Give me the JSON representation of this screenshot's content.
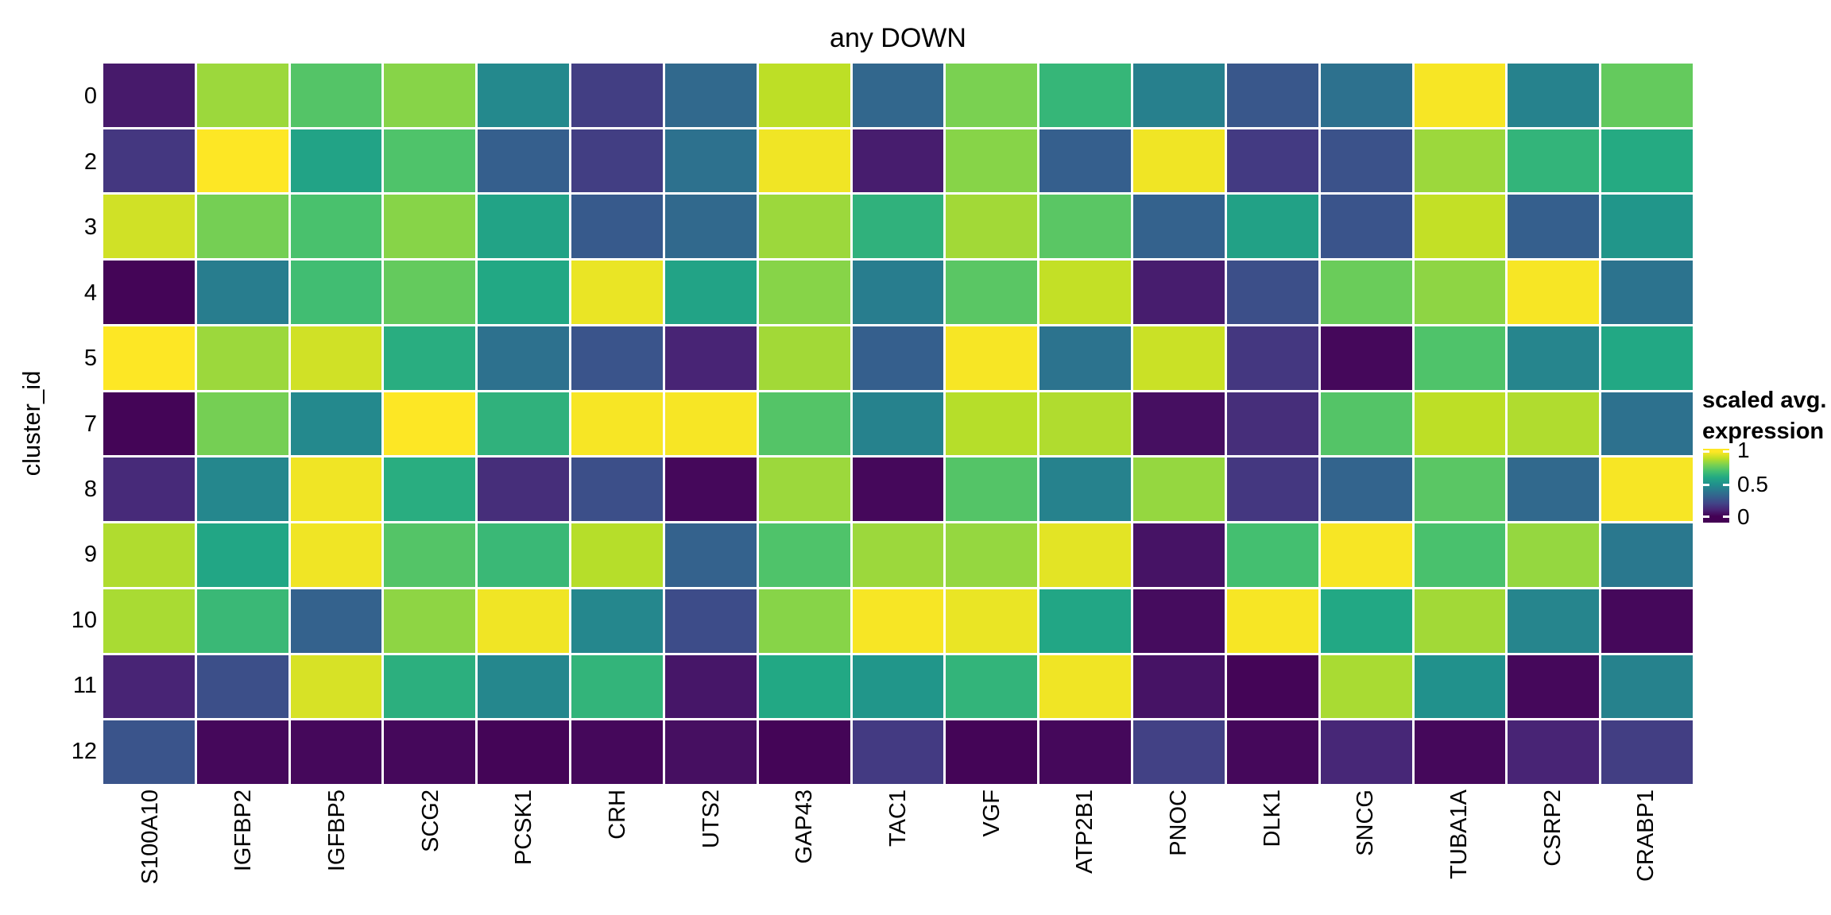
{
  "title": "any DOWN",
  "y_axis_label": "cluster_id",
  "legend": {
    "title_line1": "scaled avg.",
    "title_line2": "expression",
    "ticks": [
      "1",
      "0.5",
      "0"
    ]
  },
  "chart_data": {
    "type": "heatmap",
    "title": "any DOWN",
    "ylabel": "cluster_id",
    "xlabel": "",
    "legend_title": "scaled avg. expression",
    "legend_tick_labels": [
      "1",
      "0.5",
      "0"
    ],
    "value_range": [
      0,
      1
    ],
    "grid": "white-gaps",
    "legend_position": "right",
    "x_tick_label_rotation_deg": -90,
    "colormap": "viridis",
    "colormap_stops": [
      "#440154",
      "#482475",
      "#414487",
      "#355f8d",
      "#2a788e",
      "#21918c",
      "#22a884",
      "#44bf70",
      "#7ad151",
      "#bddf26",
      "#fde725"
    ],
    "columns": [
      "S100A10",
      "IGFBP2",
      "IGFBP5",
      "SCG2",
      "PCSK1",
      "CRH",
      "UTS2",
      "GAP43",
      "TAC1",
      "VGF",
      "ATP2B1",
      "PNOC",
      "DLK1",
      "SNCG",
      "TUBA1A",
      "CSRP2",
      "CRABP1"
    ],
    "rows": [
      "0",
      "2",
      "3",
      "4",
      "5",
      "7",
      "8",
      "9",
      "10",
      "11",
      "12"
    ],
    "values": [
      [
        0.07,
        0.85,
        0.73,
        0.82,
        0.47,
        0.18,
        0.34,
        0.9,
        0.33,
        0.8,
        0.66,
        0.43,
        0.27,
        0.37,
        0.99,
        0.44,
        0.76
      ],
      [
        0.16,
        1.0,
        0.58,
        0.72,
        0.3,
        0.18,
        0.37,
        0.98,
        0.08,
        0.82,
        0.3,
        0.98,
        0.17,
        0.25,
        0.85,
        0.65,
        0.61
      ],
      [
        0.93,
        0.79,
        0.71,
        0.82,
        0.58,
        0.28,
        0.34,
        0.85,
        0.64,
        0.86,
        0.74,
        0.31,
        0.57,
        0.26,
        0.91,
        0.3,
        0.52
      ],
      [
        0.01,
        0.42,
        0.69,
        0.76,
        0.6,
        0.97,
        0.58,
        0.82,
        0.42,
        0.74,
        0.91,
        0.08,
        0.24,
        0.77,
        0.83,
        0.99,
        0.38
      ],
      [
        1.0,
        0.85,
        0.93,
        0.62,
        0.37,
        0.26,
        0.1,
        0.86,
        0.3,
        0.99,
        0.38,
        0.92,
        0.16,
        0.02,
        0.72,
        0.45,
        0.6
      ],
      [
        0.01,
        0.79,
        0.47,
        1.0,
        0.64,
        0.99,
        0.99,
        0.73,
        0.44,
        0.89,
        0.88,
        0.04,
        0.13,
        0.73,
        0.9,
        0.88,
        0.37
      ],
      [
        0.12,
        0.46,
        0.98,
        0.62,
        0.13,
        0.24,
        0.02,
        0.85,
        0.02,
        0.73,
        0.44,
        0.84,
        0.16,
        0.32,
        0.74,
        0.34,
        0.99
      ],
      [
        0.88,
        0.59,
        0.98,
        0.73,
        0.67,
        0.89,
        0.31,
        0.72,
        0.85,
        0.84,
        0.96,
        0.05,
        0.7,
        0.99,
        0.71,
        0.84,
        0.4
      ],
      [
        0.87,
        0.67,
        0.31,
        0.83,
        0.98,
        0.46,
        0.23,
        0.82,
        0.99,
        0.97,
        0.59,
        0.03,
        0.99,
        0.6,
        0.86,
        0.45,
        0.02
      ],
      [
        0.1,
        0.24,
        0.94,
        0.63,
        0.46,
        0.65,
        0.06,
        0.6,
        0.52,
        0.65,
        0.98,
        0.05,
        0.01,
        0.87,
        0.5,
        0.02,
        0.44
      ],
      [
        0.26,
        0.02,
        0.02,
        0.02,
        0.01,
        0.02,
        0.04,
        0.01,
        0.17,
        0.01,
        0.02,
        0.19,
        0.02,
        0.11,
        0.02,
        0.1,
        0.18
      ]
    ]
  }
}
